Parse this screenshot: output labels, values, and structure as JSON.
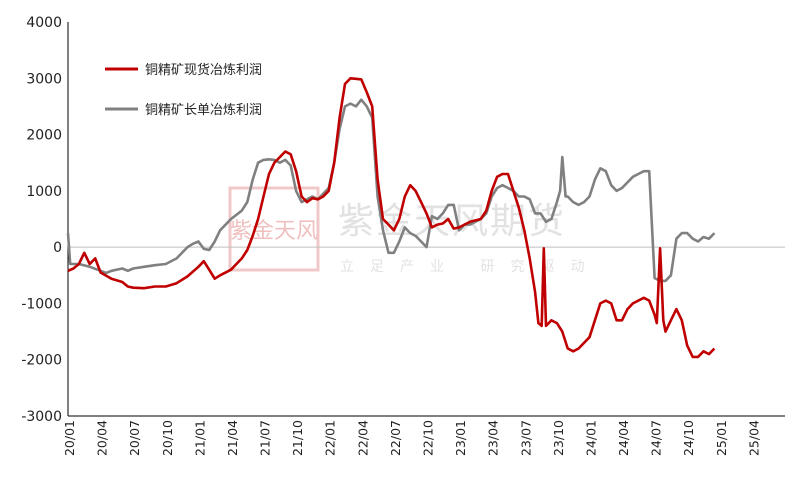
{
  "chart_data": {
    "type": "line",
    "title": "",
    "xlabel": "",
    "ylabel": "",
    "ylim": [
      -3000,
      4000
    ],
    "yticks": [
      -3000,
      -2000,
      -1000,
      0,
      1000,
      2000,
      3000,
      4000
    ],
    "ytick_labels": [
      "-3000",
      "-2000",
      "-1000",
      "0",
      "1000",
      "2000",
      "3000",
      "4000"
    ],
    "xlim": [
      0,
      66
    ],
    "x_tick_labels": [
      "20/01",
      "20/04",
      "20/07",
      "20/10",
      "21/01",
      "21/04",
      "21/07",
      "21/10",
      "22/01",
      "22/04",
      "22/07",
      "22/10",
      "23/01",
      "23/04",
      "23/07",
      "23/10",
      "24/01",
      "24/04",
      "24/07",
      "24/10",
      "25/01",
      "25/04"
    ],
    "legend_position": "top-left",
    "grid": false,
    "zero_line": true,
    "series": [
      {
        "name": "铜精矿现货冶炼利润",
        "color": "#c00000",
        "points": [
          [
            0,
            -420
          ],
          [
            0.5,
            -380
          ],
          [
            1,
            -300
          ],
          [
            1.5,
            -100
          ],
          [
            2,
            -300
          ],
          [
            2.5,
            -200
          ],
          [
            3,
            -450
          ],
          [
            4,
            -560
          ],
          [
            5,
            -620
          ],
          [
            5.5,
            -700
          ],
          [
            6,
            -720
          ],
          [
            7,
            -730
          ],
          [
            8,
            -700
          ],
          [
            9,
            -700
          ],
          [
            10,
            -640
          ],
          [
            11,
            -520
          ],
          [
            12,
            -350
          ],
          [
            12.5,
            -250
          ],
          [
            13,
            -400
          ],
          [
            13.5,
            -560
          ],
          [
            14,
            -500
          ],
          [
            15,
            -400
          ],
          [
            15.5,
            -300
          ],
          [
            16,
            -200
          ],
          [
            16.5,
            -50
          ],
          [
            17,
            200
          ],
          [
            17.5,
            500
          ],
          [
            18,
            900
          ],
          [
            18.5,
            1300
          ],
          [
            19,
            1500
          ],
          [
            19.5,
            1600
          ],
          [
            20,
            1700
          ],
          [
            20.5,
            1650
          ],
          [
            21,
            1350
          ],
          [
            21.5,
            900
          ],
          [
            22,
            800
          ],
          [
            22.5,
            870
          ],
          [
            23,
            850
          ],
          [
            23.5,
            900
          ],
          [
            24,
            1000
          ],
          [
            24.5,
            1500
          ],
          [
            25,
            2300
          ],
          [
            25.5,
            2900
          ],
          [
            26,
            3000
          ],
          [
            26.5,
            2990
          ],
          [
            27,
            2980
          ],
          [
            27.5,
            2750
          ],
          [
            28,
            2500
          ],
          [
            28.5,
            1200
          ],
          [
            29,
            500
          ],
          [
            29.5,
            400
          ],
          [
            30,
            300
          ],
          [
            30.5,
            500
          ],
          [
            31,
            900
          ],
          [
            31.5,
            1100
          ],
          [
            32,
            1000
          ],
          [
            32.5,
            800
          ],
          [
            33,
            600
          ],
          [
            33.5,
            350
          ],
          [
            34,
            400
          ],
          [
            34.5,
            420
          ],
          [
            35,
            500
          ],
          [
            35.5,
            330
          ],
          [
            36,
            350
          ],
          [
            36.5,
            400
          ],
          [
            37,
            450
          ],
          [
            38,
            500
          ],
          [
            38.5,
            650
          ],
          [
            39,
            1000
          ],
          [
            39.5,
            1250
          ],
          [
            40,
            1300
          ],
          [
            40.5,
            1300
          ],
          [
            41,
            1000
          ],
          [
            41.5,
            700
          ],
          [
            42,
            300
          ],
          [
            42.5,
            -200
          ],
          [
            43,
            -800
          ],
          [
            43.3,
            -1350
          ],
          [
            43.6,
            -1400
          ],
          [
            43.8,
            -20
          ],
          [
            44,
            -1400
          ],
          [
            44.5,
            -1300
          ],
          [
            45,
            -1350
          ],
          [
            45.5,
            -1500
          ],
          [
            46,
            -1800
          ],
          [
            46.5,
            -1850
          ],
          [
            47,
            -1800
          ],
          [
            48,
            -1600
          ],
          [
            48.5,
            -1300
          ],
          [
            49,
            -1000
          ],
          [
            49.5,
            -950
          ],
          [
            50,
            -1000
          ],
          [
            50.5,
            -1300
          ],
          [
            51,
            -1300
          ],
          [
            51.5,
            -1100
          ],
          [
            52,
            -1000
          ],
          [
            52.5,
            -950
          ],
          [
            53,
            -900
          ],
          [
            53.5,
            -950
          ],
          [
            54,
            -1200
          ],
          [
            54.2,
            -1350
          ],
          [
            54.5,
            -20
          ],
          [
            54.8,
            -1300
          ],
          [
            55,
            -1500
          ],
          [
            55.5,
            -1300
          ],
          [
            56,
            -1100
          ],
          [
            56.5,
            -1300
          ],
          [
            57,
            -1750
          ],
          [
            57.5,
            -1950
          ],
          [
            58,
            -1950
          ],
          [
            58.5,
            -1850
          ],
          [
            59,
            -1900
          ],
          [
            59.5,
            -1800
          ]
        ]
      },
      {
        "name": "铜精矿长单冶炼利润",
        "color": "#808080",
        "points": [
          [
            0,
            250
          ],
          [
            0.2,
            -300
          ],
          [
            1,
            -300
          ],
          [
            2,
            -350
          ],
          [
            3,
            -420
          ],
          [
            3.5,
            -460
          ],
          [
            4,
            -420
          ],
          [
            5,
            -380
          ],
          [
            5.5,
            -420
          ],
          [
            6,
            -380
          ],
          [
            7,
            -350
          ],
          [
            8,
            -320
          ],
          [
            9,
            -300
          ],
          [
            10,
            -200
          ],
          [
            11,
            0
          ],
          [
            11.5,
            60
          ],
          [
            12,
            100
          ],
          [
            12.5,
            -30
          ],
          [
            13,
            -50
          ],
          [
            13.5,
            100
          ],
          [
            14,
            300
          ],
          [
            15,
            500
          ],
          [
            16,
            650
          ],
          [
            16.5,
            800
          ],
          [
            17,
            1200
          ],
          [
            17.5,
            1500
          ],
          [
            18,
            1550
          ],
          [
            18.5,
            1560
          ],
          [
            19,
            1550
          ],
          [
            19.5,
            1500
          ],
          [
            20,
            1550
          ],
          [
            20.5,
            1450
          ],
          [
            21,
            1000
          ],
          [
            21.5,
            800
          ],
          [
            22,
            850
          ],
          [
            22.5,
            900
          ],
          [
            23,
            850
          ],
          [
            23.5,
            950
          ],
          [
            24,
            1050
          ],
          [
            24.5,
            1500
          ],
          [
            25,
            2100
          ],
          [
            25.5,
            2500
          ],
          [
            26,
            2550
          ],
          [
            26.5,
            2500
          ],
          [
            27,
            2620
          ],
          [
            27.5,
            2500
          ],
          [
            28,
            2300
          ],
          [
            28.5,
            900
          ],
          [
            29,
            300
          ],
          [
            29.5,
            -100
          ],
          [
            30,
            -100
          ],
          [
            30.5,
            100
          ],
          [
            31,
            350
          ],
          [
            31.5,
            250
          ],
          [
            32,
            200
          ],
          [
            32.5,
            100
          ],
          [
            33,
            0
          ],
          [
            33.5,
            550
          ],
          [
            34,
            500
          ],
          [
            34.5,
            600
          ],
          [
            35,
            750
          ],
          [
            35.5,
            750
          ],
          [
            36,
            300
          ],
          [
            36.5,
            400
          ],
          [
            37,
            400
          ],
          [
            38,
            500
          ],
          [
            38.5,
            600
          ],
          [
            39,
            900
          ],
          [
            39.5,
            1050
          ],
          [
            40,
            1100
          ],
          [
            40.5,
            1050
          ],
          [
            41,
            1000
          ],
          [
            41.5,
            900
          ],
          [
            42,
            900
          ],
          [
            42.5,
            850
          ],
          [
            43,
            600
          ],
          [
            43.5,
            600
          ],
          [
            44,
            450
          ],
          [
            44.5,
            500
          ],
          [
            45,
            800
          ],
          [
            45.3,
            1000
          ],
          [
            45.5,
            1600
          ],
          [
            45.8,
            900
          ],
          [
            46,
            900
          ],
          [
            46.5,
            800
          ],
          [
            47,
            750
          ],
          [
            47.5,
            800
          ],
          [
            48,
            900
          ],
          [
            48.5,
            1200
          ],
          [
            49,
            1400
          ],
          [
            49.5,
            1350
          ],
          [
            50,
            1100
          ],
          [
            50.5,
            1000
          ],
          [
            51,
            1050
          ],
          [
            51.5,
            1150
          ],
          [
            52,
            1250
          ],
          [
            52.5,
            1300
          ],
          [
            53,
            1350
          ],
          [
            53.5,
            1350
          ],
          [
            54,
            -550
          ],
          [
            54.5,
            -600
          ],
          [
            55,
            -600
          ],
          [
            55.5,
            -500
          ],
          [
            56,
            150
          ],
          [
            56.5,
            250
          ],
          [
            57,
            250
          ],
          [
            57.5,
            150
          ],
          [
            58,
            100
          ],
          [
            58.5,
            180
          ],
          [
            59,
            150
          ],
          [
            59.5,
            250
          ]
        ]
      }
    ]
  },
  "watermark": {
    "logo_text": "紫金天风",
    "name": "紫金天风期货",
    "slogan": "立足产业 研究驱动"
  }
}
